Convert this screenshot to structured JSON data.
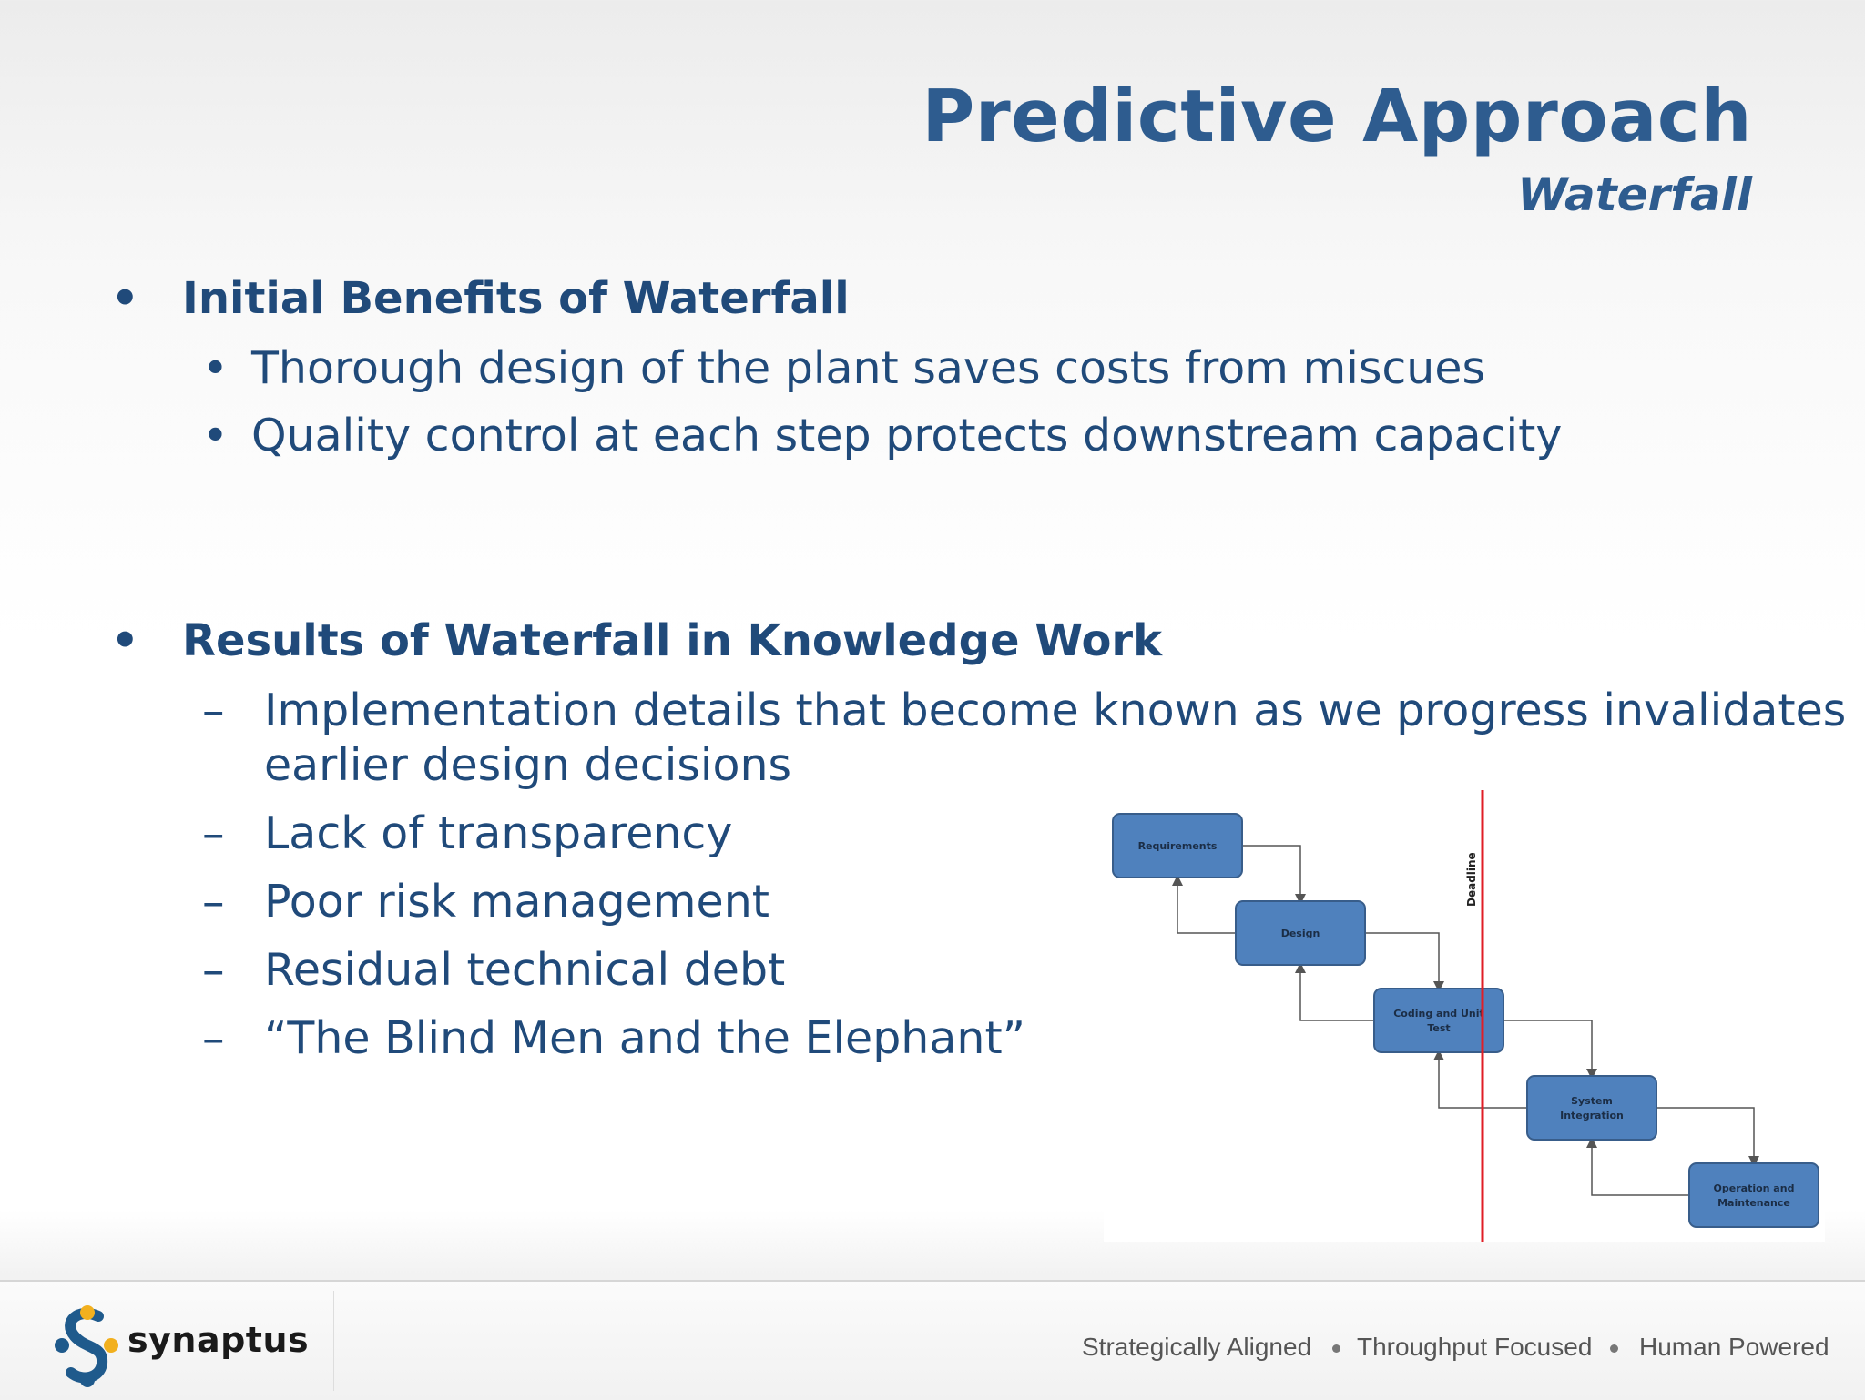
{
  "slide": {
    "title": "Predictive Approach",
    "subtitle": "Waterfall"
  },
  "sections": [
    {
      "heading": "Initial Benefits of Waterfall",
      "points": [
        "Thorough design of the plant saves costs from miscues",
        "Quality control at each step protects downstream capacity"
      ]
    },
    {
      "heading": "Results of Waterfall in Knowledge Work",
      "points": [
        "Implementation details that become known as we progress invalidates",
        "earlier design decisions",
        "Lack of transparency",
        "Poor risk management",
        "Residual technical debt",
        "“The Blind Men and the Elephant”"
      ]
    }
  ],
  "bullets": {
    "main": "•",
    "sub": "•",
    "dash": "–"
  },
  "diagram": {
    "stages": [
      "Requirements",
      [
        "Design"
      ],
      [
        "Coding and Unit",
        "Test"
      ],
      [
        "System",
        "Integration"
      ],
      [
        "Operation and",
        "Maintenance"
      ]
    ],
    "deadline_label": "Deadline",
    "colors": {
      "box_fill": "#4f81bd",
      "box_stroke": "#385d8a",
      "connector": "#555555",
      "deadline": "#e01e26"
    }
  },
  "footer": {
    "brand": "synaptus",
    "taglines": [
      "Strategically Aligned",
      "Throughput Focused",
      "Human Powered"
    ],
    "logo_colors": [
      "#1f5a8c",
      "#f2b01e"
    ]
  }
}
